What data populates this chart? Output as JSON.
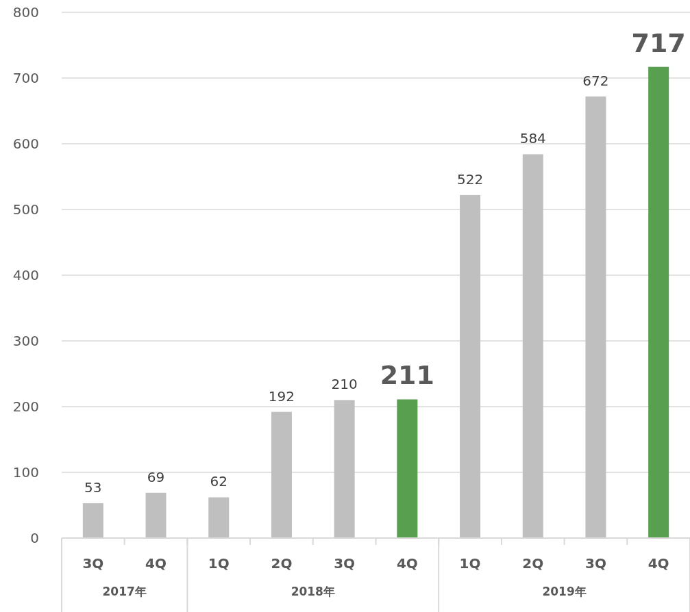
{
  "chart_data": {
    "type": "bar",
    "categories": [
      "3Q",
      "4Q",
      "1Q",
      "2Q",
      "3Q",
      "4Q",
      "1Q",
      "2Q",
      "3Q",
      "4Q"
    ],
    "values": [
      53,
      69,
      62,
      192,
      210,
      211,
      522,
      584,
      672,
      717
    ],
    "color": "#bfbfbf",
    "colors": [
      "#bfbfbf",
      "#bfbfbf",
      "#bfbfbf",
      "#bfbfbf",
      "#bfbfbf",
      "#589f4f",
      "#bfbfbf",
      "#bfbfbf",
      "#bfbfbf",
      "#589f4f"
    ],
    "ylim": [
      0,
      800
    ],
    "yticks": [
      0,
      100,
      200,
      300,
      400,
      500,
      600,
      700,
      800
    ],
    "grid": "y",
    "data_labels": true,
    "annotations": [
      "2017年",
      "2018年",
      "2019年"
    ]
  }
}
